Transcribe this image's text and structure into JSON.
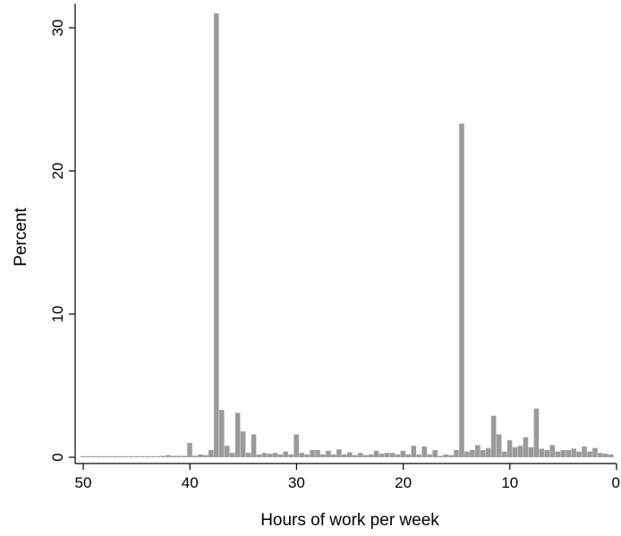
{
  "chart_data": {
    "type": "bar",
    "title": "",
    "xlabel": "Hours of work per week",
    "ylabel": "Percent",
    "x_axis_reversed": true,
    "xlim": [
      50,
      0
    ],
    "ylim": [
      0,
      32
    ],
    "xticks": [
      50,
      40,
      30,
      20,
      10,
      0
    ],
    "yticks": [
      0,
      10,
      20,
      30
    ],
    "bar_color": "#9b9b9b",
    "grid": false,
    "bin_width": 0.5,
    "bars": [
      {
        "x": 50,
        "y": 0.05
      },
      {
        "x": 49.5,
        "y": 0.05
      },
      {
        "x": 49,
        "y": 0.05
      },
      {
        "x": 48.5,
        "y": 0.05
      },
      {
        "x": 48,
        "y": 0.05
      },
      {
        "x": 47.5,
        "y": 0.05
      },
      {
        "x": 47,
        "y": 0.05
      },
      {
        "x": 46.5,
        "y": 0.05
      },
      {
        "x": 46,
        "y": 0.05
      },
      {
        "x": 45.5,
        "y": 0.05
      },
      {
        "x": 45,
        "y": 0.05
      },
      {
        "x": 44.5,
        "y": 0.05
      },
      {
        "x": 44,
        "y": 0.05
      },
      {
        "x": 43.5,
        "y": 0.05
      },
      {
        "x": 43,
        "y": 0.05
      },
      {
        "x": 42.5,
        "y": 0.1
      },
      {
        "x": 42,
        "y": 0.15
      },
      {
        "x": 41.5,
        "y": 0.1
      },
      {
        "x": 41,
        "y": 0.1
      },
      {
        "x": 40.5,
        "y": 0.1
      },
      {
        "x": 40,
        "y": 1.0
      },
      {
        "x": 39.5,
        "y": 0.1
      },
      {
        "x": 39,
        "y": 0.2
      },
      {
        "x": 38.5,
        "y": 0.15
      },
      {
        "x": 38,
        "y": 0.5
      },
      {
        "x": 37.5,
        "y": 31.0
      },
      {
        "x": 37,
        "y": 3.3
      },
      {
        "x": 36.5,
        "y": 0.8
      },
      {
        "x": 36,
        "y": 0.3
      },
      {
        "x": 35.5,
        "y": 3.1
      },
      {
        "x": 35,
        "y": 1.8
      },
      {
        "x": 34.5,
        "y": 0.3
      },
      {
        "x": 34,
        "y": 1.6
      },
      {
        "x": 33.5,
        "y": 0.2
      },
      {
        "x": 33,
        "y": 0.3
      },
      {
        "x": 32.5,
        "y": 0.25
      },
      {
        "x": 32,
        "y": 0.3
      },
      {
        "x": 31.5,
        "y": 0.2
      },
      {
        "x": 31,
        "y": 0.4
      },
      {
        "x": 30.5,
        "y": 0.2
      },
      {
        "x": 30,
        "y": 1.6
      },
      {
        "x": 29.5,
        "y": 0.3
      },
      {
        "x": 29,
        "y": 0.2
      },
      {
        "x": 28.5,
        "y": 0.5
      },
      {
        "x": 28,
        "y": 0.5
      },
      {
        "x": 27.5,
        "y": 0.2
      },
      {
        "x": 27,
        "y": 0.45
      },
      {
        "x": 26.5,
        "y": 0.2
      },
      {
        "x": 26,
        "y": 0.55
      },
      {
        "x": 25.5,
        "y": 0.2
      },
      {
        "x": 25,
        "y": 0.35
      },
      {
        "x": 24.5,
        "y": 0.15
      },
      {
        "x": 24,
        "y": 0.3
      },
      {
        "x": 23.5,
        "y": 0.15
      },
      {
        "x": 23,
        "y": 0.2
      },
      {
        "x": 22.5,
        "y": 0.45
      },
      {
        "x": 22,
        "y": 0.25
      },
      {
        "x": 21.5,
        "y": 0.3
      },
      {
        "x": 21,
        "y": 0.3
      },
      {
        "x": 20.5,
        "y": 0.2
      },
      {
        "x": 20,
        "y": 0.45
      },
      {
        "x": 19.5,
        "y": 0.2
      },
      {
        "x": 19,
        "y": 0.8
      },
      {
        "x": 18.5,
        "y": 0.2
      },
      {
        "x": 18,
        "y": 0.75
      },
      {
        "x": 17.5,
        "y": 0.2
      },
      {
        "x": 17,
        "y": 0.5
      },
      {
        "x": 16.5,
        "y": 0.1
      },
      {
        "x": 16,
        "y": 0.2
      },
      {
        "x": 15.5,
        "y": 0.15
      },
      {
        "x": 15,
        "y": 0.5
      },
      {
        "x": 14.5,
        "y": 23.3
      },
      {
        "x": 14,
        "y": 0.4
      },
      {
        "x": 13.5,
        "y": 0.5
      },
      {
        "x": 13,
        "y": 0.85
      },
      {
        "x": 12.5,
        "y": 0.5
      },
      {
        "x": 12,
        "y": 0.65
      },
      {
        "x": 11.5,
        "y": 2.9
      },
      {
        "x": 11,
        "y": 1.6
      },
      {
        "x": 10.5,
        "y": 0.4
      },
      {
        "x": 10,
        "y": 1.2
      },
      {
        "x": 9.5,
        "y": 0.7
      },
      {
        "x": 9,
        "y": 0.8
      },
      {
        "x": 8.5,
        "y": 1.4
      },
      {
        "x": 8,
        "y": 0.7
      },
      {
        "x": 7.5,
        "y": 3.4
      },
      {
        "x": 7,
        "y": 0.6
      },
      {
        "x": 6.5,
        "y": 0.5
      },
      {
        "x": 6,
        "y": 0.85
      },
      {
        "x": 5.5,
        "y": 0.4
      },
      {
        "x": 5,
        "y": 0.5
      },
      {
        "x": 4.5,
        "y": 0.5
      },
      {
        "x": 4,
        "y": 0.6
      },
      {
        "x": 3.5,
        "y": 0.4
      },
      {
        "x": 3,
        "y": 0.75
      },
      {
        "x": 2.5,
        "y": 0.4
      },
      {
        "x": 2,
        "y": 0.65
      },
      {
        "x": 1.5,
        "y": 0.3
      },
      {
        "x": 1,
        "y": 0.25
      },
      {
        "x": 0.5,
        "y": 0.2
      }
    ]
  }
}
